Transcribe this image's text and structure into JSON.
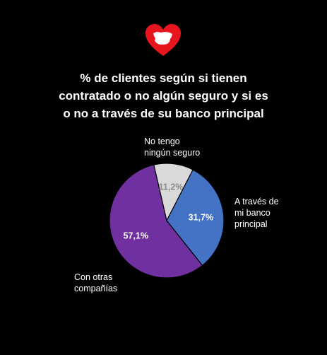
{
  "brand": {
    "logo_icon": "heart-spain-map-logo",
    "heart_color": "#e8141e",
    "map_color": "#ffffff"
  },
  "title_lines": [
    "% de clientes según si tienen",
    "contratado o no algún seguro y si es",
    "o no a través de su banco principal"
  ],
  "chart_data": {
    "type": "pie",
    "title": "% de clientes según si tienen contratado o no algún seguro y si es o no a través de su banco principal",
    "slices": [
      {
        "label": "No tengo ningún seguro",
        "label_lines": [
          "No tengo",
          "ningún seguro"
        ],
        "value": 11.2,
        "value_label": "11,2%",
        "color": "#d9d9d9",
        "value_text_color": "#8c8c8c"
      },
      {
        "label": "A través de mi banco principal",
        "label_lines": [
          "A través de",
          "mi banco",
          "principal"
        ],
        "value": 31.7,
        "value_label": "31,7%",
        "color": "#4472c4",
        "value_text_color": "#ffffff"
      },
      {
        "label": "Con otras compañías",
        "label_lines": [
          "Con otras",
          "compañías"
        ],
        "value": 57.1,
        "value_label": "57,1%",
        "color": "#7030a0",
        "value_text_color": "#ffffff"
      }
    ],
    "start_angle_deg": 347,
    "direction": "clockwise",
    "legend": "none",
    "slice_border_color": "#000000"
  }
}
